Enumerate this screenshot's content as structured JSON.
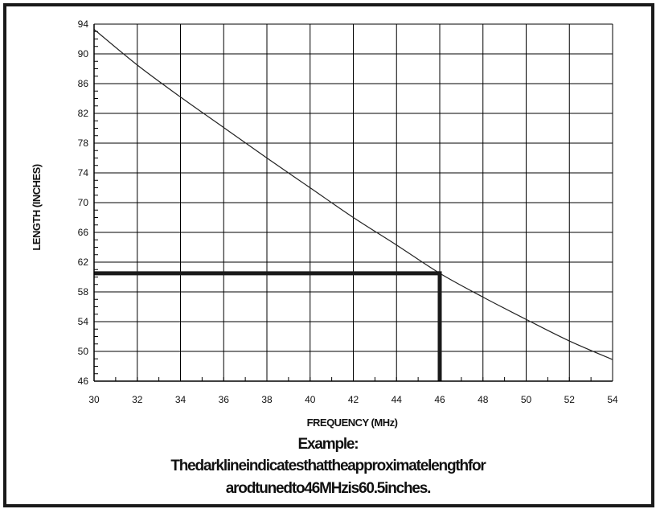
{
  "chart_data": {
    "type": "line",
    "xlabel": "FREQUENCY (MHz)",
    "ylabel": "LENGTH (INCHES)",
    "xlim": [
      30,
      54
    ],
    "ylim": [
      46,
      94
    ],
    "x_ticks": [
      30,
      32,
      34,
      36,
      38,
      40,
      42,
      44,
      46,
      48,
      50,
      52,
      54
    ],
    "y_ticks": [
      46,
      50,
      54,
      58,
      62,
      66,
      70,
      74,
      78,
      82,
      86,
      90,
      94
    ],
    "x_minor_step": 1,
    "y_minor_step": 1,
    "grid": true,
    "series": [
      {
        "x": [
          30,
          32,
          34,
          36,
          38,
          40,
          42,
          44,
          46,
          48,
          50,
          52,
          54
        ],
        "y": [
          93.3,
          88.5,
          84.2,
          80.1,
          76.0,
          72.0,
          68.0,
          64.3,
          60.5,
          57.3,
          54.3,
          51.4,
          48.9
        ],
        "color": "#222222"
      }
    ],
    "highlight": {
      "x": 46,
      "y": 60.5,
      "color": "#1a1a1a"
    }
  },
  "caption": {
    "title": "Example:",
    "line1": "Thedarklineindicatesthattheapproximatelengthfor",
    "line2": "arodtunedto46MHzis60.5inches."
  }
}
